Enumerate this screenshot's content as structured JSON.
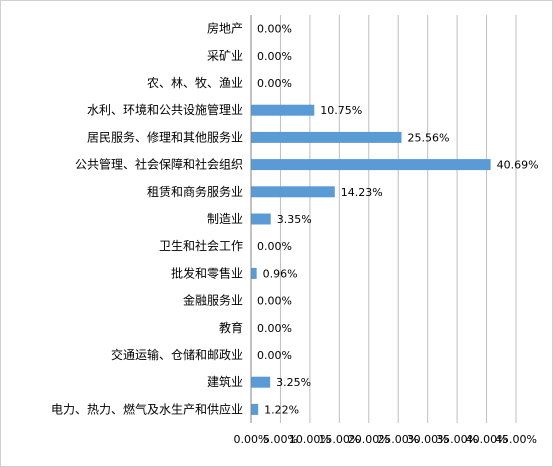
{
  "chart_data": {
    "type": "bar",
    "orientation": "horizontal",
    "categories": [
      "房地产",
      "采矿业",
      "农、林、牧、渔业",
      "水利、环境和公共设施管理业",
      "居民服务、修理和其他服务业",
      "公共管理、社会保障和社会组织",
      "租赁和商务服务业",
      "制造业",
      "卫生和社会工作",
      "批发和零售业",
      "金融服务业",
      "教育",
      "交通运输、仓储和邮政业",
      "建筑业",
      "电力、热力、燃气及水生产和供应业"
    ],
    "values": [
      0.0,
      0.0,
      0.0,
      10.75,
      25.56,
      40.69,
      14.23,
      3.35,
      0.0,
      0.96,
      0.0,
      0.0,
      0.0,
      3.25,
      1.22
    ],
    "data_labels": [
      "0.00%",
      "0.00%",
      "0.00%",
      "10.75%",
      "25.56%",
      "40.69%",
      "14.23%",
      "3.35%",
      "0.00%",
      "0.96%",
      "0.00%",
      "0.00%",
      "0.00%",
      "3.25%",
      "1.22%"
    ],
    "xlim": [
      0,
      45
    ],
    "x_ticks": [
      "0.00%",
      "5.00%",
      "10.00%",
      "15.00%",
      "20.00%",
      "25.00%",
      "30.00%",
      "35.00%",
      "40.00%",
      "45.00%"
    ],
    "title": "",
    "xlabel": "",
    "ylabel": "",
    "grid": "vertical",
    "legend": "none",
    "bar_color": "#5b9bd5",
    "grid_color": "#bfbfbf"
  }
}
